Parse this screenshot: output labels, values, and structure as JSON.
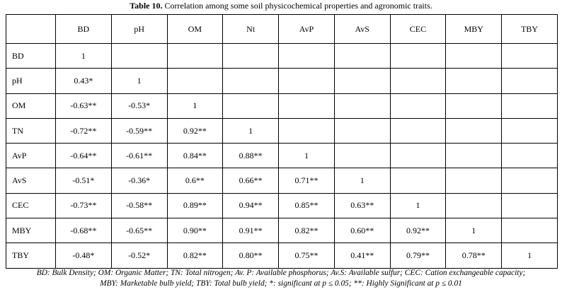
{
  "caption": {
    "label": "Table 10.",
    "text": " Correlation among some soil physicochemical properties and agronomic traits."
  },
  "table": {
    "columns": [
      "BD",
      "pH",
      "OM",
      "Nt",
      "AvP",
      "AvS",
      "CEC",
      "MBY",
      "TBY"
    ],
    "rows": [
      {
        "label": "BD",
        "cells": [
          "1",
          "",
          "",
          "",
          "",
          "",
          "",
          "",
          ""
        ]
      },
      {
        "label": "pH",
        "cells": [
          "0.43*",
          "1",
          "",
          "",
          "",
          "",
          "",
          "",
          ""
        ]
      },
      {
        "label": "OM",
        "cells": [
          "-0.63**",
          "-0.53*",
          "1",
          "",
          "",
          "",
          "",
          "",
          ""
        ]
      },
      {
        "label": "TN",
        "cells": [
          "-0.72**",
          "-0.59**",
          "0.92**",
          "1",
          "",
          "",
          "",
          "",
          ""
        ]
      },
      {
        "label": "AvP",
        "cells": [
          "-0.64**",
          "-0.61**",
          "0.84**",
          "0.88**",
          "1",
          "",
          "",
          "",
          ""
        ]
      },
      {
        "label": "AvS",
        "cells": [
          "-0.51*",
          "-0.36*",
          "0.6**",
          "0.66**",
          "0.71**",
          "1",
          "",
          "",
          ""
        ]
      },
      {
        "label": "CEC",
        "cells": [
          "-0.73**",
          "-0.58**",
          "0.89**",
          "0.94**",
          "0.85**",
          "0.63**",
          "1",
          "",
          ""
        ]
      },
      {
        "label": "MBY",
        "cells": [
          "-0.68**",
          "-0.65**",
          "0.90**",
          "0.91**",
          "0.82**",
          "0.60**",
          "0.92**",
          "1",
          ""
        ]
      },
      {
        "label": "TBY",
        "cells": [
          "-0.48*",
          "-0.52*",
          "0.82**",
          "0.80**",
          "0.75**",
          "0.41**",
          "0.79**",
          "0.78**",
          "1"
        ]
      }
    ]
  },
  "footnote": {
    "line1": "BD: Bulk Density; OM: Organic Matter; TN: Total nitrogen; Av. P: Available phosphorus; Av.S: Available sulfur; CEC: Cation exchangeable capacity;",
    "line2": "MBY: Marketable bulb yield; TBY: Total bulb yield; *: significant at p ≤ 0.05; **: Highly Significant at p ≤ 0.01"
  }
}
